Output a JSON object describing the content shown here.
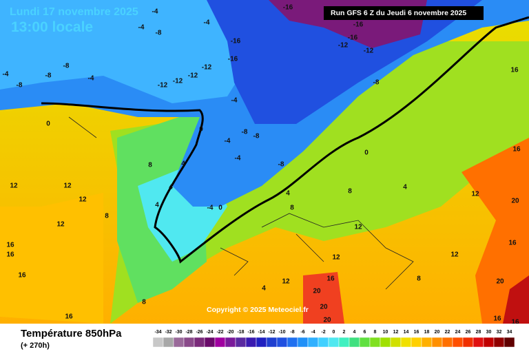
{
  "header": {
    "date": "Lundi 17 novembre 2025",
    "time": "13:00 locale",
    "run": "Run GFS 6 Z du Jeudi 6 novembre 2025"
  },
  "copyright": "Copyright © 2025 Meteociel.fr",
  "footer": {
    "title": "Température 850hPa",
    "lead": "(+ 270h)"
  },
  "contour_labels": [
    -4,
    -4,
    -8,
    -4,
    -16,
    -16,
    -16,
    -12,
    -12,
    -16,
    -16,
    -12,
    -12,
    -12,
    -12,
    -8,
    -8,
    -4,
    -4,
    -8,
    -8,
    -4,
    0,
    -8,
    -8,
    -4,
    -4,
    -8,
    0,
    4,
    8,
    4,
    4,
    -4,
    0,
    0,
    12,
    12,
    12,
    12,
    8,
    16,
    16,
    16,
    8,
    16,
    8,
    4,
    12,
    12,
    16,
    20,
    20,
    20,
    8,
    16,
    16,
    20,
    16,
    20,
    16,
    16,
    12,
    12,
    12,
    4,
    4,
    8
  ],
  "legend": {
    "values": [
      -34,
      -32,
      -30,
      -28,
      -26,
      -24,
      -22,
      -20,
      -18,
      -16,
      -14,
      -12,
      -10,
      -8,
      -6,
      -4,
      -2,
      0,
      2,
      4,
      6,
      8,
      10,
      12,
      14,
      16,
      18,
      20,
      22,
      24,
      26,
      28,
      30,
      32,
      34
    ],
    "colors": [
      "#c8c8c8",
      "#a8a8a8",
      "#9a6a9a",
      "#8a4a8a",
      "#7a2a7a",
      "#6a0a6a",
      "#a000a0",
      "#7a1a9a",
      "#5a2aa0",
      "#3a1ab0",
      "#2020c0",
      "#1f3fd0",
      "#2050e0",
      "#2070f0",
      "#2090f8",
      "#30b0ff",
      "#40d0ff",
      "#50e8f0",
      "#40f0c0",
      "#40e080",
      "#60e040",
      "#80e020",
      "#a0e000",
      "#d0e000",
      "#f0e000",
      "#ffd000",
      "#ffb000",
      "#ff9000",
      "#ff7000",
      "#ff5000",
      "#f03000",
      "#e01010",
      "#c00000",
      "#900000",
      "#600000"
    ]
  }
}
